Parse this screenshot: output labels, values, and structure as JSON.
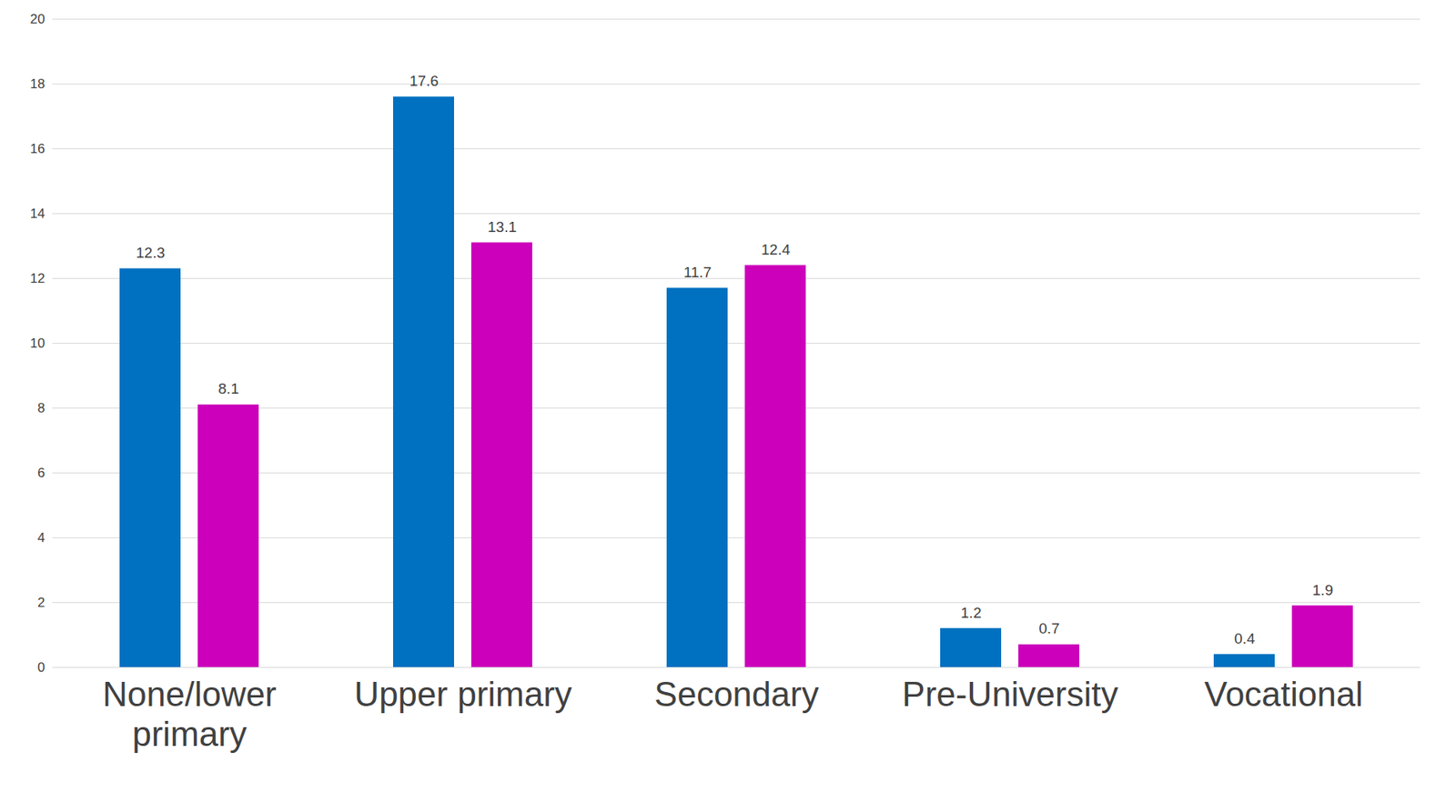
{
  "chart_data": {
    "type": "bar",
    "categories": [
      "None/lower primary",
      "Upper primary",
      "Secondary",
      "Pre-University",
      "Vocational"
    ],
    "series": [
      {
        "color": "#0070C0",
        "values": [
          12.3,
          17.6,
          11.7,
          1.2,
          0.4
        ]
      },
      {
        "color": "#CC00BB",
        "values": [
          8.1,
          13.1,
          12.4,
          0.7,
          1.9
        ]
      }
    ],
    "ylim": [
      0,
      20
    ],
    "yticks": [
      0,
      2,
      4,
      6,
      8,
      10,
      12,
      14,
      16,
      18,
      20
    ],
    "grid": true,
    "data_labels": true
  }
}
